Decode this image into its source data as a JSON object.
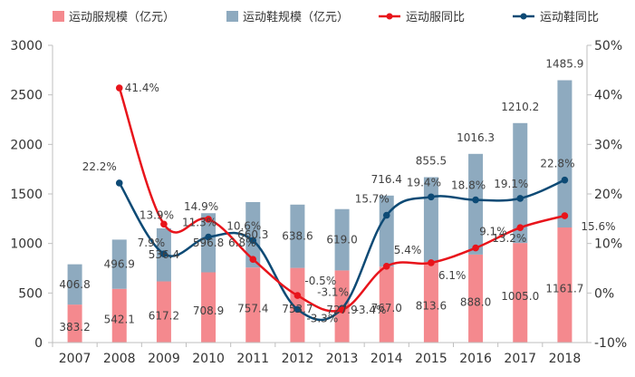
{
  "chart_data": {
    "type": "bar",
    "categories": [
      "2007",
      "2008",
      "2009",
      "2010",
      "2011",
      "2012",
      "2013",
      "2014",
      "2015",
      "2016",
      "2017",
      "2018"
    ],
    "series": [
      {
        "name": "运动服规模（亿元）",
        "type": "stacked-bar",
        "axis": "left",
        "color": "#f4898e",
        "values": [
          383.2,
          542.1,
          617.2,
          708.9,
          757.4,
          753.7,
          727.9,
          767.0,
          813.6,
          888.0,
          1005.0,
          1161.7
        ],
        "labels": [
          "383.2",
          "542.1",
          "617.2",
          "708.9",
          "757.4",
          "753.7",
          "727.9",
          "767.0",
          "813.6",
          "888.0",
          "1005.0",
          "1161.7"
        ]
      },
      {
        "name": "运动鞋规模（亿元）",
        "type": "stacked-bar",
        "axis": "left",
        "color": "#8eaabf",
        "values": [
          406.8,
          496.9,
          536.4,
          596.8,
          660.3,
          638.6,
          619.0,
          716.4,
          855.5,
          1016.3,
          1210.2,
          1485.9
        ],
        "labels": [
          "406.8",
          "496.9",
          "536.4",
          "596.8",
          "660.3",
          "638.6",
          "619.0",
          "716.4",
          "855.5",
          "1016.3",
          "1210.2",
          "1485.9"
        ]
      },
      {
        "name": "运动服同比",
        "type": "line",
        "axis": "right",
        "color": "#e8141b",
        "values": [
          null,
          41.4,
          13.9,
          14.9,
          6.8,
          -0.5,
          -3.4,
          5.4,
          6.1,
          9.1,
          13.2,
          15.6
        ],
        "labels": [
          "",
          "41.4%",
          "13.9%",
          "14.9%",
          "6.8%",
          "-0.5%",
          "-3.4%",
          "5.4%",
          "6.1%",
          "9.1%",
          "13.2%",
          "15.6%"
        ]
      },
      {
        "name": "运动鞋同比",
        "type": "line",
        "axis": "right",
        "color": "#0d4a75",
        "values": [
          null,
          22.2,
          7.9,
          11.3,
          10.6,
          -3.3,
          -3.1,
          15.7,
          19.4,
          18.8,
          19.1,
          22.8
        ],
        "labels": [
          "",
          "22.2%",
          "7.9%",
          "11.3%",
          "10.6%",
          "-3.3%",
          "-3.1%",
          "15.7%",
          "19.4%",
          "18.8%",
          "19.1%",
          "22.8%"
        ]
      }
    ],
    "y_left": {
      "min": 0,
      "max": 3000,
      "ticks": [
        "0",
        "500",
        "1000",
        "1500",
        "2000",
        "2500",
        "3000"
      ]
    },
    "y_right": {
      "min": -10,
      "max": 50,
      "ticks": [
        "-10%",
        "0%",
        "10%",
        "20%",
        "30%",
        "40%",
        "50%"
      ]
    },
    "legend_position": "top",
    "grid": false
  }
}
